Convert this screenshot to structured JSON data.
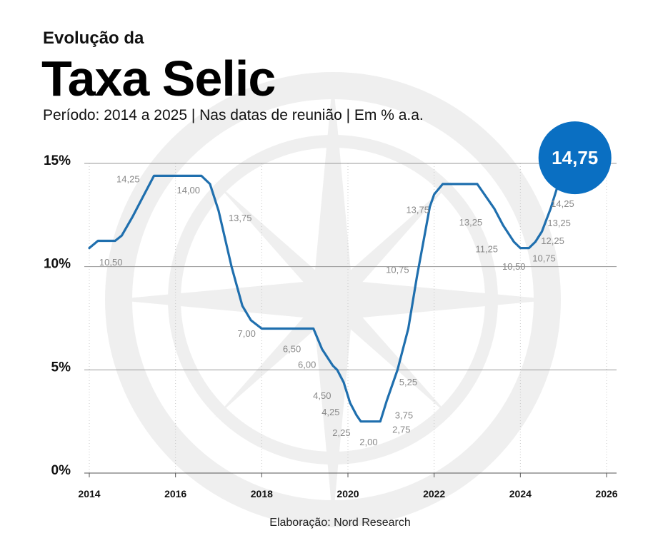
{
  "header": {
    "kicker": "Evolução da",
    "title": "Taxa Selic",
    "subtitle": "Período: 2014 a 2025 | Nas datas de reunião | Em % a.a."
  },
  "footer": {
    "source": "Elaboração: Nord Research"
  },
  "colors": {
    "line": "#1f6fae",
    "accent": "#0a6fc2",
    "grid": "#9a9a9a",
    "watermark": "#efefef"
  },
  "chart_data": {
    "type": "line",
    "x_domain": [
      2014,
      2026
    ],
    "ylim": [
      0,
      15
    ],
    "yticks": [
      0,
      5,
      10,
      15
    ],
    "ytick_labels": [
      "0%",
      "5%",
      "10%",
      "15%"
    ],
    "xticks": [
      2014,
      2016,
      2018,
      2020,
      2022,
      2024,
      2026
    ],
    "xtick_labels": [
      "2014",
      "2016",
      "2018",
      "2020",
      "2022",
      "2024",
      "2026"
    ],
    "grid": true,
    "series": [
      {
        "points": [
          [
            2014.0,
            10.9
          ],
          [
            2014.2,
            11.25
          ],
          [
            2014.6,
            11.25
          ],
          [
            2014.75,
            11.5
          ],
          [
            2015.0,
            12.4
          ],
          [
            2015.25,
            13.4
          ],
          [
            2015.5,
            14.4
          ],
          [
            2016.0,
            14.4
          ],
          [
            2016.6,
            14.4
          ],
          [
            2016.8,
            14.0
          ],
          [
            2017.0,
            12.7
          ],
          [
            2017.3,
            10.0
          ],
          [
            2017.55,
            8.1
          ],
          [
            2017.75,
            7.4
          ],
          [
            2018.0,
            7.0
          ],
          [
            2018.5,
            7.0
          ],
          [
            2019.2,
            7.0
          ],
          [
            2019.4,
            6.0
          ],
          [
            2019.65,
            5.2
          ],
          [
            2019.75,
            5.0
          ],
          [
            2019.9,
            4.4
          ],
          [
            2020.05,
            3.4
          ],
          [
            2020.2,
            2.8
          ],
          [
            2020.3,
            2.5
          ],
          [
            2020.75,
            2.5
          ],
          [
            2020.9,
            3.5
          ],
          [
            2021.15,
            5.0
          ],
          [
            2021.4,
            7.0
          ],
          [
            2021.6,
            9.5
          ],
          [
            2021.75,
            11.2
          ],
          [
            2021.9,
            12.9
          ],
          [
            2022.0,
            13.5
          ],
          [
            2022.2,
            14.0
          ],
          [
            2022.5,
            14.0
          ],
          [
            2023.0,
            14.0
          ],
          [
            2023.4,
            12.8
          ],
          [
            2023.6,
            12.0
          ],
          [
            2023.85,
            11.2
          ],
          [
            2024.0,
            10.9
          ],
          [
            2024.2,
            10.9
          ],
          [
            2024.35,
            11.2
          ],
          [
            2024.5,
            11.7
          ],
          [
            2024.7,
            12.8
          ],
          [
            2024.85,
            13.8
          ],
          [
            2025.0,
            14.5
          ]
        ]
      }
    ],
    "data_labels": [
      {
        "text": "10,50",
        "x": 2014.5,
        "y": 10.05
      },
      {
        "text": "14,25",
        "x": 2014.9,
        "y": 14.08
      },
      {
        "text": "14,00",
        "x": 2016.3,
        "y": 13.55
      },
      {
        "text": "13,75",
        "x": 2017.5,
        "y": 12.2
      },
      {
        "text": "7,00",
        "x": 2017.65,
        "y": 6.6
      },
      {
        "text": "6,50",
        "x": 2018.7,
        "y": 5.85
      },
      {
        "text": "6,00",
        "x": 2019.05,
        "y": 5.1
      },
      {
        "text": "4,50",
        "x": 2019.4,
        "y": 3.6
      },
      {
        "text": "4,25",
        "x": 2019.6,
        "y": 2.8
      },
      {
        "text": "2,25",
        "x": 2019.85,
        "y": 1.8
      },
      {
        "text": "2,00",
        "x": 2020.48,
        "y": 1.35
      },
      {
        "text": "2,75",
        "x": 2021.24,
        "y": 1.95
      },
      {
        "text": "3,75",
        "x": 2021.3,
        "y": 2.65
      },
      {
        "text": "5,25",
        "x": 2021.4,
        "y": 4.25
      },
      {
        "text": "10,75",
        "x": 2021.15,
        "y": 9.7
      },
      {
        "text": "13,75",
        "x": 2021.62,
        "y": 12.6
      },
      {
        "text": "13,25",
        "x": 2022.85,
        "y": 12.0
      },
      {
        "text": "11,25",
        "x": 2023.22,
        "y": 10.7
      },
      {
        "text": "10,50",
        "x": 2023.85,
        "y": 9.85
      },
      {
        "text": "10,75",
        "x": 2024.55,
        "y": 10.25
      },
      {
        "text": "12,25",
        "x": 2024.75,
        "y": 11.1
      },
      {
        "text": "13,25",
        "x": 2024.9,
        "y": 11.95
      },
      {
        "text": "14,25",
        "x": 2024.98,
        "y": 12.9
      }
    ],
    "callout": {
      "text": "14,75",
      "x": 2025.15,
      "y": 15.1
    }
  }
}
